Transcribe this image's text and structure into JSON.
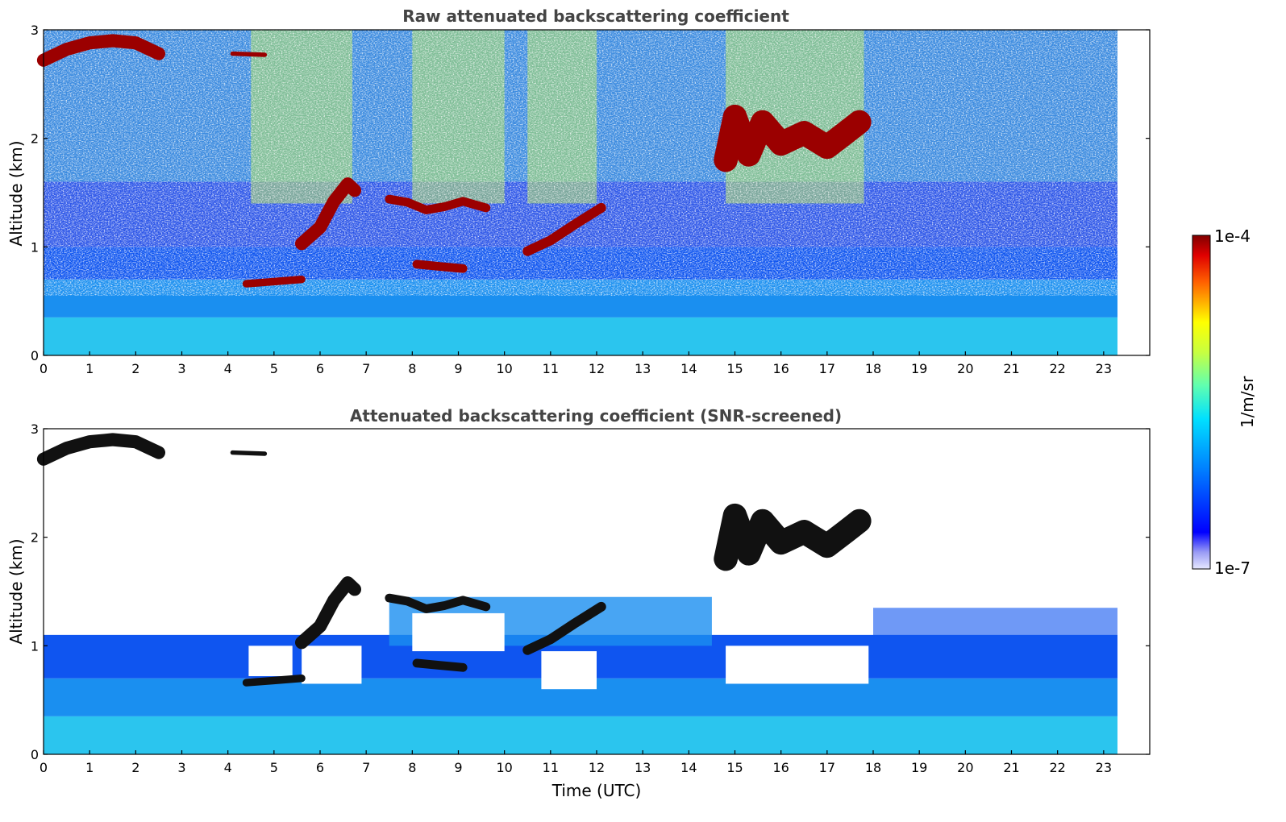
{
  "chart_data": [
    {
      "type": "heatmap",
      "id": "raw",
      "title": "Raw attenuated backscattering coefficient",
      "xlabel": "",
      "ylabel": "Altitude (km)",
      "xlim": [
        0,
        24
      ],
      "ylim": [
        0,
        3
      ],
      "data_extent_x": 23.3,
      "xticks": [
        "0",
        "1",
        "2",
        "3",
        "4",
        "5",
        "6",
        "7",
        "8",
        "9",
        "10",
        "11",
        "12",
        "13",
        "14",
        "15",
        "16",
        "17",
        "18",
        "19",
        "20",
        "21",
        "22",
        "23"
      ],
      "yticks": [
        "0",
        "1",
        "2",
        "3"
      ],
      "screened": false,
      "cloud_layers": [
        {
          "points": [
            [
              0,
              2.72
            ],
            [
              0.5,
              2.82
            ],
            [
              1,
              2.88
            ],
            [
              1.5,
              2.9
            ],
            [
              2,
              2.88
            ],
            [
              2.5,
              2.78
            ]
          ],
          "thickness": 0.12
        },
        {
          "points": [
            [
              4.1,
              2.78
            ],
            [
              4.8,
              2.77
            ]
          ],
          "thickness": 0.04
        },
        {
          "points": [
            [
              4.4,
              0.66
            ],
            [
              5,
              0.68
            ],
            [
              5.6,
              0.7
            ]
          ],
          "thickness": 0.07
        },
        {
          "points": [
            [
              5.6,
              1.03
            ],
            [
              6,
              1.18
            ],
            [
              6.3,
              1.42
            ],
            [
              6.6,
              1.58
            ],
            [
              6.75,
              1.52
            ]
          ],
          "thickness": 0.12
        },
        {
          "points": [
            [
              7.5,
              1.44
            ],
            [
              7.9,
              1.41
            ],
            [
              8.3,
              1.34
            ],
            [
              8.7,
              1.37
            ],
            [
              9.1,
              1.42
            ],
            [
              9.6,
              1.36
            ]
          ],
          "thickness": 0.08
        },
        {
          "points": [
            [
              8.1,
              0.84
            ],
            [
              8.6,
              0.82
            ],
            [
              9.1,
              0.8
            ]
          ],
          "thickness": 0.08
        },
        {
          "points": [
            [
              10.5,
              0.96
            ],
            [
              11,
              1.06
            ],
            [
              11.5,
              1.2
            ],
            [
              12.1,
              1.36
            ]
          ],
          "thickness": 0.09
        },
        {
          "points": [
            [
              14.8,
              1.8
            ],
            [
              15,
              2.2
            ],
            [
              15.3,
              1.85
            ],
            [
              15.6,
              2.15
            ],
            [
              16,
              1.95
            ],
            [
              16.5,
              2.05
            ],
            [
              17,
              1.92
            ],
            [
              17.4,
              2.05
            ],
            [
              17.7,
              2.15
            ]
          ],
          "thickness": 0.22
        }
      ],
      "mask_regions": []
    },
    {
      "type": "heatmap",
      "id": "snr",
      "title": "Attenuated backscattering coefficient (SNR-screened)",
      "xlabel": "Time (UTC)",
      "ylabel": "Altitude (km)",
      "xlim": [
        0,
        24
      ],
      "ylim": [
        0,
        3
      ],
      "data_extent_x": 23.3,
      "xticks": [
        "0",
        "1",
        "2",
        "3",
        "4",
        "5",
        "6",
        "7",
        "8",
        "9",
        "10",
        "11",
        "12",
        "13",
        "14",
        "15",
        "16",
        "17",
        "18",
        "19",
        "20",
        "21",
        "22",
        "23"
      ],
      "yticks": [
        "0",
        "1",
        "2",
        "3"
      ],
      "screened": true,
      "cloud_layers": [
        {
          "points": [
            [
              0,
              2.72
            ],
            [
              0.5,
              2.82
            ],
            [
              1,
              2.88
            ],
            [
              1.5,
              2.9
            ],
            [
              2,
              2.88
            ],
            [
              2.5,
              2.78
            ]
          ],
          "thickness": 0.12
        },
        {
          "points": [
            [
              4.1,
              2.78
            ],
            [
              4.8,
              2.77
            ]
          ],
          "thickness": 0.04
        },
        {
          "points": [
            [
              4.4,
              0.66
            ],
            [
              5,
              0.68
            ],
            [
              5.6,
              0.7
            ]
          ],
          "thickness": 0.07
        },
        {
          "points": [
            [
              5.6,
              1.03
            ],
            [
              6,
              1.18
            ],
            [
              6.3,
              1.42
            ],
            [
              6.6,
              1.58
            ],
            [
              6.75,
              1.52
            ]
          ],
          "thickness": 0.12
        },
        {
          "points": [
            [
              7.5,
              1.44
            ],
            [
              7.9,
              1.41
            ],
            [
              8.3,
              1.34
            ],
            [
              8.7,
              1.37
            ],
            [
              9.1,
              1.42
            ],
            [
              9.6,
              1.36
            ]
          ],
          "thickness": 0.08
        },
        {
          "points": [
            [
              8.1,
              0.84
            ],
            [
              8.6,
              0.82
            ],
            [
              9.1,
              0.8
            ]
          ],
          "thickness": 0.08
        },
        {
          "points": [
            [
              10.5,
              0.96
            ],
            [
              11,
              1.06
            ],
            [
              11.5,
              1.2
            ],
            [
              12.1,
              1.36
            ]
          ],
          "thickness": 0.09
        },
        {
          "points": [
            [
              14.8,
              1.8
            ],
            [
              15,
              2.2
            ],
            [
              15.3,
              1.85
            ],
            [
              15.6,
              2.15
            ],
            [
              16,
              1.95
            ],
            [
              16.5,
              2.05
            ],
            [
              17,
              1.92
            ],
            [
              17.4,
              2.05
            ],
            [
              17.7,
              2.15
            ]
          ],
          "thickness": 0.22
        }
      ],
      "mask_regions": [
        {
          "x": [
            4.45,
            5.4
          ],
          "y": [
            0.72,
            1.0
          ]
        },
        {
          "x": [
            5.6,
            6.9
          ],
          "y": [
            0.65,
            1.0
          ]
        },
        {
          "x": [
            8.0,
            10.0
          ],
          "y": [
            0.95,
            1.3
          ]
        },
        {
          "x": [
            10.8,
            12.0
          ],
          "y": [
            0.6,
            0.95
          ]
        },
        {
          "x": [
            14.8,
            17.9
          ],
          "y": [
            0.65,
            1.0
          ]
        }
      ]
    }
  ],
  "colorbar": {
    "label": "1/m/sr",
    "max_label": "1e-4",
    "min_label": "1e-7",
    "scale": "log",
    "range": [
      1e-07,
      0.0001
    ],
    "colormap": "jet"
  }
}
